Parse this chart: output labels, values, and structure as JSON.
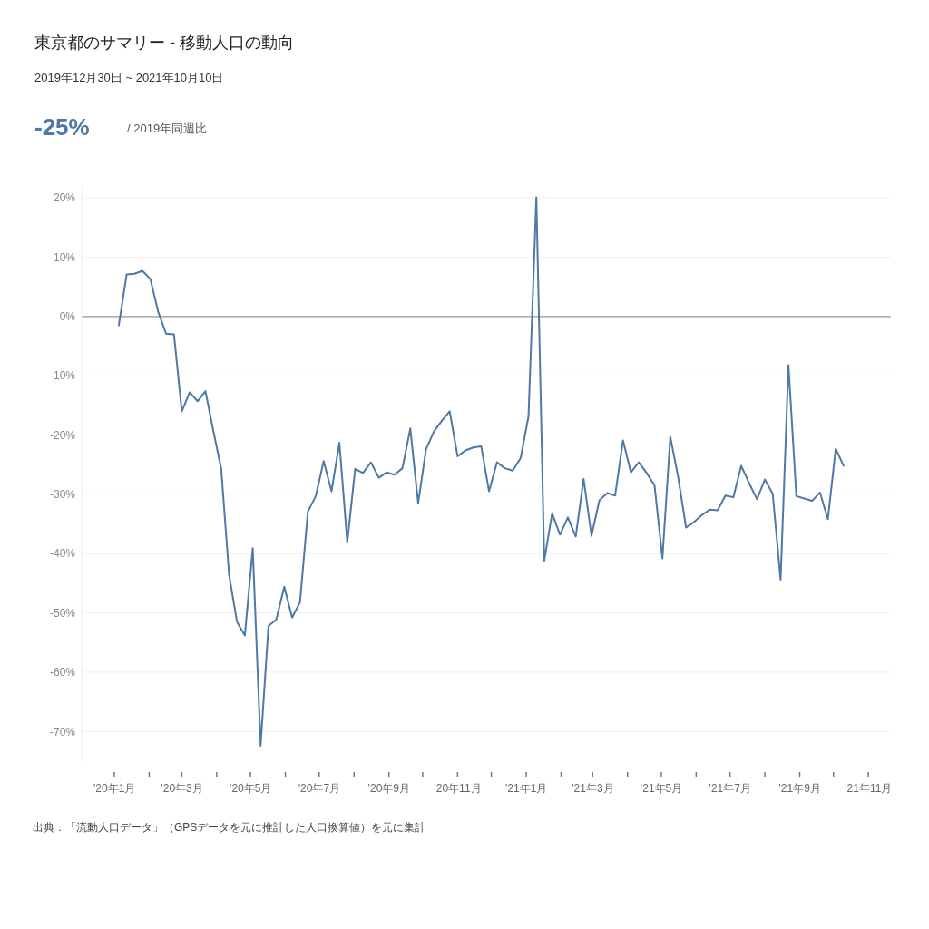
{
  "chart_data": {
    "type": "line",
    "title": "東京都のサマリー - 移動人口の動向",
    "subtitle": "2019年12月30日 ~ 2021年10月10日",
    "annotations": [
      "-25%",
      "/ 2019年同週比",
      "出典：「流動人口データ」（GPSデータを元に推計した人口換算値）を元に集計"
    ],
    "x": [
      "2020-01-05",
      "2020-01-12",
      "2020-01-19",
      "2020-01-26",
      "2020-02-02",
      "2020-02-09",
      "2020-02-16",
      "2020-02-23",
      "2020-03-01",
      "2020-03-08",
      "2020-03-15",
      "2020-03-22",
      "2020-03-29",
      "2020-04-05",
      "2020-04-12",
      "2020-04-19",
      "2020-04-26",
      "2020-05-03",
      "2020-05-10",
      "2020-05-17",
      "2020-05-24",
      "2020-05-31",
      "2020-06-07",
      "2020-06-14",
      "2020-06-21",
      "2020-06-28",
      "2020-07-05",
      "2020-07-12",
      "2020-07-19",
      "2020-07-26",
      "2020-08-02",
      "2020-08-09",
      "2020-08-16",
      "2020-08-23",
      "2020-08-30",
      "2020-09-06",
      "2020-09-13",
      "2020-09-20",
      "2020-09-27",
      "2020-10-04",
      "2020-10-11",
      "2020-10-18",
      "2020-10-25",
      "2020-11-01",
      "2020-11-08",
      "2020-11-15",
      "2020-11-22",
      "2020-11-29",
      "2020-12-06",
      "2020-12-13",
      "2020-12-20",
      "2020-12-27",
      "2021-01-03",
      "2021-01-10",
      "2021-01-17",
      "2021-01-24",
      "2021-01-31",
      "2021-02-07",
      "2021-02-14",
      "2021-02-21",
      "2021-02-28",
      "2021-03-07",
      "2021-03-14",
      "2021-03-21",
      "2021-03-28",
      "2021-04-04",
      "2021-04-11",
      "2021-04-18",
      "2021-04-25",
      "2021-05-02",
      "2021-05-09",
      "2021-05-16",
      "2021-05-23",
      "2021-05-30",
      "2021-06-06",
      "2021-06-13",
      "2021-06-20",
      "2021-06-27",
      "2021-07-04",
      "2021-07-11",
      "2021-07-18",
      "2021-07-25",
      "2021-08-01",
      "2021-08-08",
      "2021-08-15",
      "2021-08-22",
      "2021-08-29",
      "2021-09-05",
      "2021-09-12",
      "2021-09-19",
      "2021-09-26",
      "2021-10-03",
      "2021-10-10"
    ],
    "series": [
      {
        "color": "#4e79a7",
        "values": [
          -1.5,
          7.1,
          7.2,
          7.7,
          6.3,
          0.8,
          -2.9,
          -3.0,
          -16.0,
          -12.8,
          -14.3,
          -12.6,
          -19.3,
          -25.7,
          -43.6,
          -51.5,
          -53.8,
          -39.1,
          -72.4,
          -52.2,
          -51.1,
          -45.6,
          -50.8,
          -48.2,
          -32.9,
          -30.3,
          -24.4,
          -29.5,
          -21.3,
          -38.1,
          -25.7,
          -26.4,
          -24.6,
          -27.2,
          -26.3,
          -26.7,
          -25.6,
          -18.9,
          -31.5,
          -22.4,
          -19.4,
          -17.6,
          -16.0,
          -23.6,
          -22.6,
          -22.1,
          -21.9,
          -29.5,
          -24.6,
          -25.6,
          -26.0,
          -23.9,
          -16.9,
          20.1,
          -41.2,
          -33.2,
          -36.8,
          -33.9,
          -37.1,
          -27.4,
          -37.0,
          -31.0,
          -29.8,
          -30.2,
          -20.9,
          -26.3,
          -24.6,
          -26.4,
          -28.5,
          -40.8,
          -20.3,
          -27.1,
          -35.6,
          -34.7,
          -33.5,
          -32.6,
          -32.7,
          -30.2,
          -30.5,
          -25.2,
          -28.1,
          -30.8,
          -27.5,
          -29.9,
          -44.4,
          -8.2,
          -30.3,
          -30.7,
          -31.1,
          -29.7,
          -34.2,
          -22.3,
          -25.2
        ]
      }
    ],
    "xlim": [
      "2019-12-03",
      "2021-11-21"
    ],
    "xticks": [
      {
        "value": "2020-01-01",
        "label": "’20年1月"
      },
      {
        "value": "2020-02-01",
        "label": null
      },
      {
        "value": "2020-03-01",
        "label": "’20年3月"
      },
      {
        "value": "2020-04-01",
        "label": null
      },
      {
        "value": "2020-05-01",
        "label": "’20年5月"
      },
      {
        "value": "2020-06-01",
        "label": null
      },
      {
        "value": "2020-07-01",
        "label": "’20年7月"
      },
      {
        "value": "2020-08-01",
        "label": null
      },
      {
        "value": "2020-09-01",
        "label": "’20年9月"
      },
      {
        "value": "2020-10-01",
        "label": null
      },
      {
        "value": "2020-11-01",
        "label": "’20年11月"
      },
      {
        "value": "2020-12-01",
        "label": null
      },
      {
        "value": "2021-01-01",
        "label": "’21年1月"
      },
      {
        "value": "2021-02-01",
        "label": null
      },
      {
        "value": "2021-03-01",
        "label": "’21年3月"
      },
      {
        "value": "2021-04-01",
        "label": null
      },
      {
        "value": "2021-05-01",
        "label": "’21年5月"
      },
      {
        "value": "2021-06-01",
        "label": null
      },
      {
        "value": "2021-07-01",
        "label": "’21年7月"
      },
      {
        "value": "2021-08-01",
        "label": null
      },
      {
        "value": "2021-09-01",
        "label": "’21年9月"
      },
      {
        "value": "2021-10-01",
        "label": null
      },
      {
        "value": "2021-11-01",
        "label": "’21年11月"
      }
    ],
    "ylim": [
      -75,
      22
    ],
    "yticks": [
      {
        "value": -70,
        "label": "-70%"
      },
      {
        "value": -60,
        "label": "-60%"
      },
      {
        "value": -50,
        "label": "-50%"
      },
      {
        "value": -40,
        "label": "-40%"
      },
      {
        "value": -30,
        "label": "-30%"
      },
      {
        "value": -20,
        "label": "-20%"
      },
      {
        "value": -10,
        "label": "-10%"
      },
      {
        "value": 0,
        "label": "0%"
      },
      {
        "value": 10,
        "label": "10%"
      },
      {
        "value": 20,
        "label": "20%"
      }
    ],
    "grid": "y",
    "line_style": "solid",
    "marker": "none",
    "ref_lines": [
      {
        "axis": "y",
        "value": 0,
        "color": "#999999"
      }
    ]
  }
}
